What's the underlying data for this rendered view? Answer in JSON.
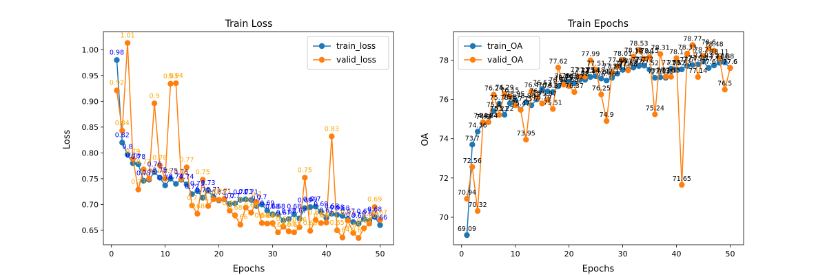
{
  "chart_data": [
    {
      "type": "line",
      "title": "Train Loss",
      "xlabel": "Epochs",
      "ylabel": "Loss",
      "xlim": [
        -1.5,
        52.5
      ],
      "ylim": [
        0.622,
        1.035
      ],
      "xticks": [
        0,
        10,
        20,
        30,
        40,
        50
      ],
      "yticks": [
        0.65,
        0.7,
        0.75,
        0.8,
        0.85,
        0.9,
        0.95,
        1.0
      ],
      "ytick_labels": [
        "0.65",
        "0.70",
        "0.75",
        "0.80",
        "0.85",
        "0.90",
        "0.95",
        "1.00"
      ],
      "legend_position": "top-right",
      "label_decimals": 2,
      "x": [
        1,
        2,
        3,
        4,
        5,
        6,
        7,
        8,
        9,
        10,
        11,
        12,
        13,
        14,
        15,
        16,
        17,
        18,
        19,
        20,
        21,
        22,
        23,
        24,
        25,
        26,
        27,
        28,
        29,
        30,
        31,
        32,
        33,
        34,
        35,
        36,
        37,
        38,
        39,
        40,
        41,
        42,
        43,
        44,
        45,
        46,
        47,
        48,
        49,
        50
      ],
      "series": [
        {
          "name": "train_loss",
          "color": "#1f77b4",
          "label_color": "#0000ff",
          "values": [
            0.98,
            0.82,
            0.797,
            0.78,
            0.778,
            0.746,
            0.748,
            0.763,
            0.752,
            0.737,
            0.75,
            0.74,
            0.748,
            0.739,
            0.72,
            0.726,
            0.713,
            0.727,
            0.714,
            0.708,
            0.71,
            0.701,
            0.702,
            0.709,
            0.71,
            0.709,
            0.697,
            0.7,
            0.688,
            0.681,
            0.681,
            0.669,
            0.672,
            0.681,
            0.673,
            0.693,
            0.695,
            0.696,
            0.686,
            0.674,
            0.682,
            0.68,
            0.678,
            0.672,
            0.666,
            0.663,
            0.672,
            0.668,
            0.676,
            0.66
          ]
        },
        {
          "name": "valid_loss",
          "color": "#ff7f0e",
          "label_color": "#ffa500",
          "values": [
            0.921,
            0.843,
            1.013,
            0.788,
            0.729,
            0.768,
            0.75,
            0.896,
            0.776,
            0.75,
            0.934,
            0.935,
            0.749,
            0.772,
            0.698,
            0.682,
            0.748,
            0.697,
            0.71,
            0.709,
            0.711,
            0.688,
            0.679,
            0.661,
            0.694,
            0.684,
            0.705,
            0.664,
            0.663,
            0.664,
            0.646,
            0.657,
            0.648,
            0.646,
            0.656,
            0.752,
            0.649,
            0.67,
            0.664,
            0.665,
            0.832,
            0.65,
            0.636,
            0.669,
            0.645,
            0.635,
            0.654,
            0.663,
            0.695,
            0.67
          ]
        }
      ]
    },
    {
      "type": "line",
      "title": "Train Epochs",
      "xlabel": "Epochs",
      "ylabel": "OA",
      "xlim": [
        -1.5,
        52.5
      ],
      "ylim": [
        68.6,
        79.45
      ],
      "xticks": [
        0,
        10,
        20,
        30,
        40,
        50
      ],
      "yticks": [
        70,
        72,
        74,
        76,
        78
      ],
      "ytick_labels": [
        "70",
        "72",
        "74",
        "76",
        "78"
      ],
      "legend_position": "top-left",
      "label_decimals": 2,
      "x": [
        1,
        2,
        3,
        4,
        5,
        6,
        7,
        8,
        9,
        10,
        11,
        12,
        13,
        14,
        15,
        16,
        17,
        18,
        19,
        20,
        21,
        22,
        23,
        24,
        25,
        26,
        27,
        28,
        29,
        30,
        31,
        32,
        33,
        34,
        35,
        36,
        37,
        38,
        39,
        40,
        41,
        42,
        43,
        44,
        45,
        46,
        47,
        48,
        49,
        50
      ],
      "series": [
        {
          "name": "train_OA",
          "color": "#1f77b4",
          "label_color": "#000000",
          "values": [
            69.09,
            73.7,
            74.36,
            74.8,
            74.84,
            75.4,
            75.78,
            75.22,
            75.8,
            75.95,
            75.47,
            75.86,
            75.7,
            76.0,
            76.53,
            76.41,
            76.37,
            76.67,
            76.86,
            76.9,
            76.82,
            76.98,
            77.0,
            77.14,
            77.18,
            77.06,
            76.96,
            77.1,
            77.31,
            77.5,
            77.52,
            77.62,
            77.7,
            77.72,
            77.52,
            77.1,
            77.13,
            77.1,
            77.56,
            77.52,
            77.53,
            77.7,
            77.75,
            77.78,
            77.93,
            77.6,
            77.73,
            77.86,
            77.88,
            77.6
          ]
        },
        {
          "name": "valid_OA",
          "color": "#ff7f0e",
          "label_color": "#000000",
          "values": [
            70.94,
            72.56,
            70.32,
            74.84,
            74.84,
            76.24,
            75.21,
            76.29,
            76.15,
            75.7,
            75.47,
            73.95,
            76.4,
            76.1,
            75.79,
            75.97,
            75.51,
            77.62,
            76.75,
            76.68,
            76.37,
            77.17,
            77.15,
            77.99,
            77.51,
            76.25,
            74.9,
            77.36,
            77.68,
            78.01,
            77.48,
            78.18,
            78.53,
            78.08,
            78.15,
            75.24,
            78.31,
            77.16,
            77.15,
            78.1,
            71.65,
            78.33,
            78.77,
            77.14,
            78.21,
            78.6,
            78.48,
            78.11,
            76.5,
            77.6
          ]
        }
      ]
    }
  ]
}
